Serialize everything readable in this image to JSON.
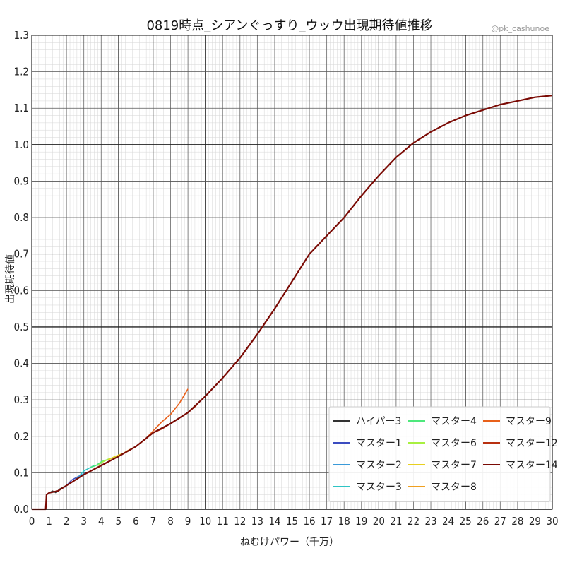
{
  "chart_data": {
    "type": "line",
    "title": "0819時点_シアンぐっすり_ウッウ出現期待値推移",
    "credit": "@pk_cashunoe",
    "xlabel": "ねむけパワー（千万）",
    "ylabel": "出現期待値",
    "xlim": [
      0,
      30
    ],
    "ylim": [
      0,
      1.3
    ],
    "x_ticks": [
      "0",
      "1",
      "2",
      "3",
      "4",
      "5",
      "6",
      "7",
      "8",
      "9",
      "10",
      "11",
      "12",
      "13",
      "14",
      "15",
      "16",
      "17",
      "18",
      "19",
      "20",
      "21",
      "22",
      "23",
      "24",
      "25",
      "26",
      "27",
      "28",
      "29",
      "30"
    ],
    "y_ticks": [
      "0.0",
      "0.1",
      "0.2",
      "0.3",
      "0.4",
      "0.5",
      "0.6",
      "0.7",
      "0.8",
      "0.9",
      "1.0",
      "1.1",
      "1.2",
      "1.3"
    ],
    "grid": true,
    "legend_position": "lower-right",
    "series": [
      {
        "name": "ハイパー3",
        "color": "#333333",
        "x": [
          0,
          0.8,
          0.85,
          1.0,
          1.2,
          1.4,
          1.6,
          1.8,
          2.0
        ],
        "y": [
          0,
          0,
          0.04,
          0.045,
          0.05,
          0.045,
          0.055,
          0.06,
          0.065
        ]
      },
      {
        "name": "マスター1",
        "color": "#3b4cc0",
        "x": [
          1.9,
          2.1,
          2.3,
          2.5,
          2.7,
          2.9
        ],
        "y": [
          0.06,
          0.07,
          0.08,
          0.085,
          0.09,
          0.095
        ]
      },
      {
        "name": "マスター2",
        "color": "#3a9ad9",
        "x": [
          2.5,
          2.7,
          2.9,
          3.1
        ],
        "y": [
          0.08,
          0.09,
          0.095,
          0.1
        ]
      },
      {
        "name": "マスター3",
        "color": "#2ec4c4",
        "x": [
          2.8,
          3.0,
          3.2,
          3.4,
          3.6
        ],
        "y": [
          0.095,
          0.105,
          0.11,
          0.115,
          0.12
        ]
      },
      {
        "name": "マスター4",
        "color": "#4ee87c",
        "x": [
          3.4,
          3.7,
          4.0,
          4.3,
          4.6,
          4.9
        ],
        "y": [
          0.115,
          0.12,
          0.13,
          0.135,
          0.14,
          0.145
        ]
      },
      {
        "name": "マスター6",
        "color": "#a8f040",
        "x": [
          3.8,
          4.1,
          4.4,
          4.7,
          5.0
        ],
        "y": [
          0.12,
          0.13,
          0.137,
          0.142,
          0.148
        ]
      },
      {
        "name": "マスター7",
        "color": "#e8d020",
        "x": [
          4.4,
          4.8,
          5.2,
          5.6
        ],
        "y": [
          0.135,
          0.145,
          0.152,
          0.16
        ]
      },
      {
        "name": "マスター8",
        "color": "#f0a020",
        "x": [
          5.0,
          5.5,
          6.0,
          6.5
        ],
        "y": [
          0.145,
          0.16,
          0.172,
          0.19
        ]
      },
      {
        "name": "マスター9",
        "color": "#e8601a",
        "x": [
          6.0,
          6.5,
          7.0,
          7.5,
          8.0,
          8.5,
          9.0
        ],
        "y": [
          0.172,
          0.19,
          0.215,
          0.24,
          0.26,
          0.29,
          0.33
        ]
      },
      {
        "name": "マスター12",
        "color": "#b83010",
        "x": [
          6.5,
          7.0,
          7.5,
          8.0,
          8.5,
          9.0,
          9.5
        ],
        "y": [
          0.19,
          0.21,
          0.22,
          0.235,
          0.25,
          0.265,
          0.285
        ]
      },
      {
        "name": "マスター14",
        "color": "#7a0a04",
        "x": [
          0,
          0.8,
          0.85,
          1.0,
          1.5,
          2.0,
          3.0,
          4.0,
          5.0,
          6.0,
          7.0,
          8.0,
          9.0,
          10.0,
          11.0,
          12.0,
          13.0,
          14.0,
          15.0,
          16.0,
          17.0,
          18.0,
          19.0,
          20.0,
          21.0,
          22.0,
          23.0,
          24.0,
          25.0,
          26.0,
          27.0,
          28.0,
          29.0,
          30.0
        ],
        "y": [
          0,
          0,
          0.04,
          0.045,
          0.05,
          0.065,
          0.095,
          0.12,
          0.145,
          0.172,
          0.21,
          0.235,
          0.265,
          0.31,
          0.36,
          0.415,
          0.48,
          0.55,
          0.625,
          0.7,
          0.75,
          0.8,
          0.86,
          0.915,
          0.965,
          1.005,
          1.035,
          1.06,
          1.08,
          1.095,
          1.11,
          1.12,
          1.13,
          1.135
        ]
      }
    ]
  }
}
